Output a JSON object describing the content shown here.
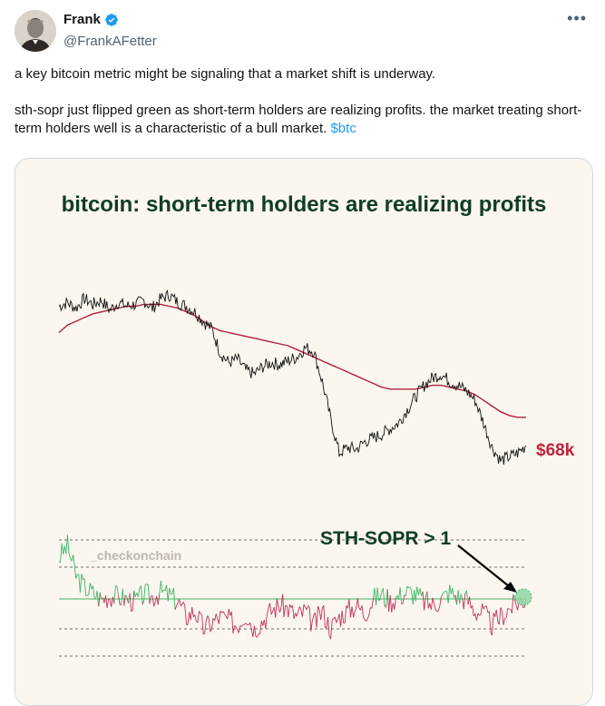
{
  "author": {
    "name": "Frank",
    "handle": "@FrankAFetter",
    "verified": true,
    "avatar_icon": "portrait-avatar"
  },
  "more_icon": "more-horizontal-icon",
  "post": {
    "paragraph1": "a key bitcoin metric might be signaling that a market shift is underway.",
    "paragraph2": "sth-sopr just flipped green as short-term holders are realizing profits. the market treating short-term holders well is a characteristic of a bull market.",
    "hashtag": "$btc"
  },
  "colors": {
    "title": "#0f3d24",
    "price_line": "#111111",
    "ma_line": "#b0213a",
    "sopr_green": "#3cb66a",
    "sopr_red": "#c0305a",
    "price_label": "#c0223a",
    "accent_link": "#1d9bf0"
  },
  "chart_data": {
    "type": "line",
    "title": "bitcoin: short-term holders are realizing profits",
    "watermark": "_checkonchain",
    "price_label": "$68k",
    "annotation": "STH-SOPR > 1",
    "series": [
      {
        "role": "price",
        "values": [
          100,
          102,
          99,
          104,
          101,
          103,
          98,
          102,
          100,
          101,
          103,
          99,
          104,
          106,
          102,
          100,
          97,
          92,
          88,
          75,
          70,
          72,
          66,
          64,
          68,
          70,
          69,
          71,
          73,
          78,
          76,
          60,
          40,
          22,
          25,
          24,
          28,
          30,
          32,
          35,
          38,
          45,
          52,
          58,
          62,
          64,
          60,
          58,
          55,
          50,
          38,
          25,
          18,
          20,
          22,
          26
        ]
      },
      {
        "role": "moving-average",
        "values": [
          86,
          90,
          92,
          94,
          96,
          97,
          98,
          99,
          100,
          100,
          101,
          101,
          101,
          100,
          99,
          97,
          95,
          92,
          89,
          87,
          86,
          85,
          84,
          83,
          82,
          81,
          80,
          79,
          77,
          75,
          73,
          71,
          69,
          67,
          65,
          63,
          61,
          59,
          57,
          56,
          56,
          56,
          56,
          57,
          58,
          58,
          57,
          56,
          55,
          53,
          50,
          47,
          44,
          42,
          41,
          41
        ]
      },
      {
        "role": "sth-sopr",
        "values": [
          1.035,
          1.045,
          1.02,
          1.01,
          1.005,
          1.0,
          1.003,
          1.002,
          1.0,
          0.998,
          1.004,
          1.002,
          1.006,
          1.003,
          0.998,
          0.985,
          0.99,
          0.975,
          0.98,
          0.985,
          0.982,
          0.978,
          0.988,
          0.975,
          0.982,
          0.99,
          0.995,
          0.992,
          0.985,
          0.99,
          0.978,
          0.99,
          0.975,
          0.985,
          0.99,
          0.995,
          0.988,
          1.0,
          1.004,
          0.998,
          1.002,
          1.006,
          1.004,
          0.998,
          0.995,
          1.0,
          1.006,
          1.002,
          1.0,
          0.99,
          0.988,
          0.978,
          0.985,
          0.992,
          0.997,
          1.0
        ]
      }
    ]
  }
}
